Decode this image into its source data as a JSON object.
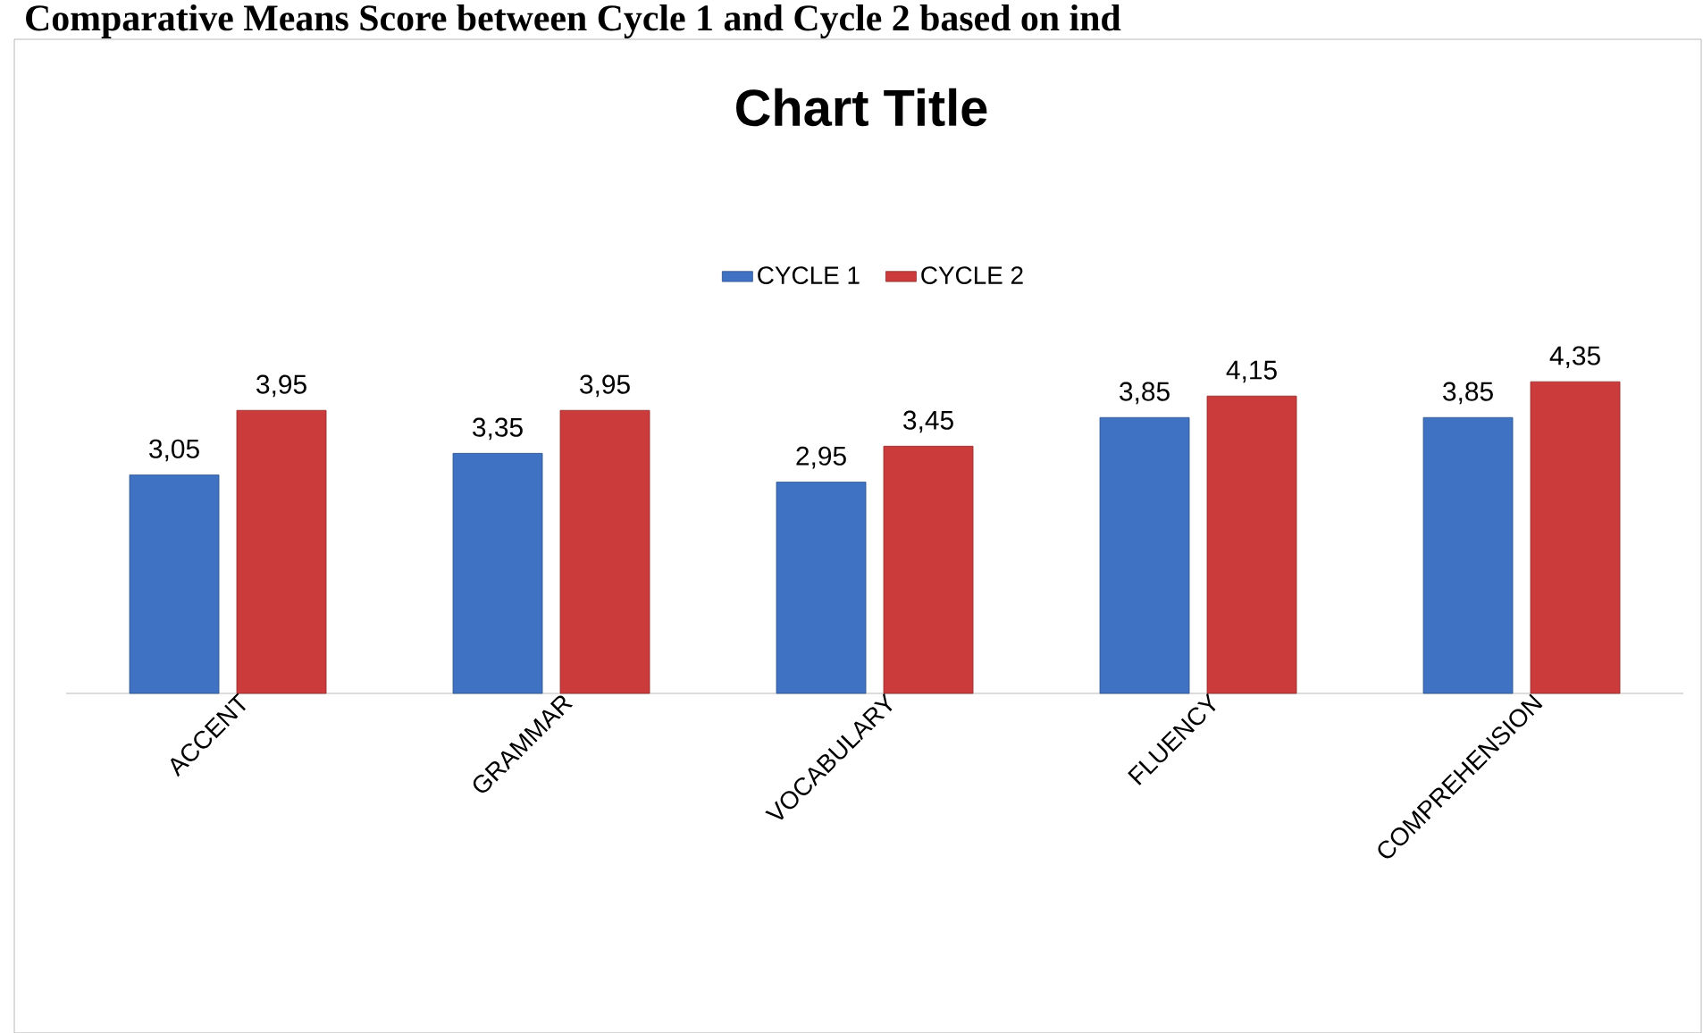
{
  "chart_data": {
    "type": "bar",
    "title": "Chart Title",
    "annotations": [
      "Comparative Means Score between Cycle 1 and Cycle 2 based on ind"
    ],
    "categories": [
      "ACCENT",
      "GRAMMAR",
      "VOCABULARY",
      "FLUENCY",
      "COMPREHENSION"
    ],
    "series": [
      {
        "name": "CYCLE 1",
        "color": "#3f72c2",
        "values": [
          3.05,
          3.35,
          2.95,
          3.85,
          3.85
        ],
        "value_labels": [
          "3,05",
          "3,35",
          "2,95",
          "3,85",
          "3,85"
        ]
      },
      {
        "name": "CYCLE 2",
        "color": "#cc3b3b",
        "values": [
          3.95,
          3.95,
          3.45,
          4.15,
          4.35
        ],
        "value_labels": [
          "3,95",
          "3,95",
          "3,45",
          "4,15",
          "4,35"
        ]
      }
    ],
    "legend": "top"
  }
}
